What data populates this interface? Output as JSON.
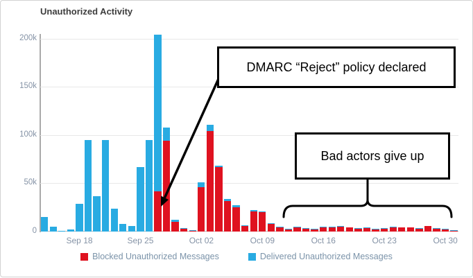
{
  "chart_data": {
    "type": "bar",
    "stacked": true,
    "title": "Unauthorized Activity",
    "xlabel": "",
    "ylabel": "",
    "ylim": [
      0,
      205000
    ],
    "grid": true,
    "legend_position": "bottom-center",
    "yticks": [
      {
        "label": "0",
        "value": 0
      },
      {
        "label": "50k",
        "value": 50000
      },
      {
        "label": "100k",
        "value": 100000
      },
      {
        "label": "150k",
        "value": 150000
      },
      {
        "label": "200k",
        "value": 200000
      }
    ],
    "xticks": [
      {
        "label": "Sep 18",
        "index": 4
      },
      {
        "label": "Sep 25",
        "index": 11
      },
      {
        "label": "Oct 02",
        "index": 18
      },
      {
        "label": "Oct 09",
        "index": 25
      },
      {
        "label": "Oct 16",
        "index": 32
      },
      {
        "label": "Oct 23",
        "index": 39
      },
      {
        "label": "Oct 30",
        "index": 46
      }
    ],
    "categories": [
      "Sep 14",
      "Sep 15",
      "Sep 16",
      "Sep 17",
      "Sep 18",
      "Sep 19",
      "Sep 20",
      "Sep 21",
      "Sep 22",
      "Sep 23",
      "Sep 24",
      "Sep 25",
      "Sep 26",
      "Sep 27",
      "Sep 28",
      "Sep 29",
      "Sep 30",
      "Oct 01",
      "Oct 02",
      "Oct 03",
      "Oct 04",
      "Oct 05",
      "Oct 06",
      "Oct 07",
      "Oct 08",
      "Oct 09",
      "Oct 10",
      "Oct 11",
      "Oct 12",
      "Oct 13",
      "Oct 14",
      "Oct 15",
      "Oct 16",
      "Oct 17",
      "Oct 18",
      "Oct 19",
      "Oct 20",
      "Oct 21",
      "Oct 22",
      "Oct 23",
      "Oct 24",
      "Oct 25",
      "Oct 26",
      "Oct 27",
      "Oct 28",
      "Oct 29",
      "Oct 30",
      "Oct 31"
    ],
    "series": [
      {
        "name": "Blocked Unauthorized Messages",
        "color": "#df1220",
        "values": [
          0,
          0,
          0,
          0,
          0,
          0,
          0,
          0,
          0,
          0,
          0,
          0,
          0,
          42000,
          94000,
          10000,
          3000,
          1000,
          46000,
          104000,
          67000,
          32000,
          25000,
          6000,
          21000,
          20000,
          8000,
          4000,
          2500,
          4000,
          3000,
          2000,
          4000,
          4000,
          5000,
          4000,
          3000,
          3500,
          2500,
          3000,
          4000,
          4000,
          4000,
          3000,
          5500,
          3000,
          2000,
          1000
        ]
      },
      {
        "name": "Delivered Unauthorized Messages",
        "color": "#29abe2",
        "values": [
          15000,
          5000,
          1000,
          2000,
          29000,
          95000,
          37000,
          95000,
          24000,
          8000,
          6000,
          67000,
          95000,
          162000,
          14000,
          2000,
          500,
          500,
          5000,
          7000,
          1500,
          2000,
          2000,
          500,
          1000,
          1000,
          1000,
          1000,
          500,
          1000,
          500,
          500,
          1000,
          1000,
          1000,
          500,
          500,
          1000,
          500,
          500,
          1000,
          500,
          500,
          500,
          500,
          500,
          500,
          300
        ]
      }
    ]
  },
  "annotations": {
    "dmarc_box": {
      "text": "DMARC “Reject” policy declared"
    },
    "bad_actors_box": {
      "text": "Bad actors give up"
    }
  },
  "colors": {
    "blocked": "#df1220",
    "delivered": "#29abe2",
    "axis_text": "#8593a6",
    "legend_text": "#7b93a9",
    "annotation_border": "#000000"
  }
}
